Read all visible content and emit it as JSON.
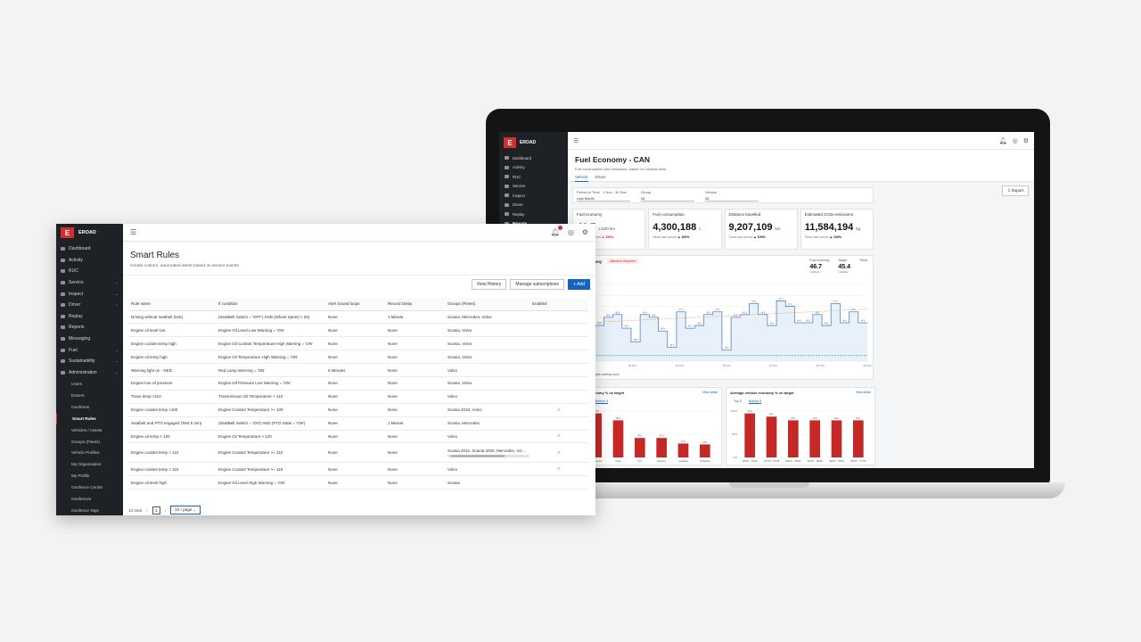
{
  "laptop": {
    "brand": "EROAD",
    "nav": [
      "Dashboard",
      "Activity",
      "RUC",
      "Service",
      "Inspect",
      "Driver",
      "Replay",
      "Reports"
    ],
    "page_title": "Fuel Economy - CAN",
    "page_subtitle": "Fuel consumption and emissions, based on CANbus data",
    "tabs": [
      "Vehicle",
      "Driver"
    ],
    "export_label": "Export",
    "filters": [
      {
        "label": "Period of Time",
        "value": "Last Month",
        "extra": "1 Nov - 30 Nov"
      },
      {
        "label": "Group",
        "value": "All"
      },
      {
        "label": "Vehicle",
        "value": "All"
      }
    ],
    "kpis": [
      {
        "label": "Fuel economy",
        "value": "46.7",
        "unit": "L/100 km",
        "delta_label": "Since last period",
        "delta": "▲ 100%",
        "delta_color": "red"
      },
      {
        "label": "Fuel consumption",
        "value": "4,300,188",
        "unit": "L",
        "delta_label": "Since last period",
        "delta": "▲ 100%",
        "delta_color": "black"
      },
      {
        "label": "Distance travelled",
        "value": "9,207,109",
        "unit": "km",
        "delta_label": "Since last period",
        "delta": "▲ 100%",
        "delta_color": "black"
      },
      {
        "label": "Estimated CO2e emissions",
        "value": "11,584,194",
        "unit": "kg",
        "delta_label": "Since last period",
        "delta": "▲ 100%",
        "delta_color": "black"
      }
    ],
    "fuel_chart": {
      "title": "Fuel economy",
      "badge": "Attention Required",
      "legend": [
        {
          "label": "Fuel economy",
          "value": "46.7",
          "unit": "L/100 km"
        },
        {
          "label": "Target",
          "value": "45.4",
          "unit": "L/100km"
        },
        {
          "label": "Trend",
          "value": "",
          "unit": ""
        }
      ],
      "footer": "More insights coming soon"
    },
    "bar_left": {
      "title": "Group economy % vs target",
      "link": "View detail",
      "tabs": [
        "Top 5",
        "Bottom 5"
      ],
      "active_tab": 1
    },
    "bar_right": {
      "title": "Average vehicle economy % vs target",
      "link": "View detail",
      "tabs": [
        "Top 5",
        "Bottom 5"
      ],
      "active_tab": 1
    }
  },
  "front": {
    "brand": "EROAD",
    "nav": [
      {
        "label": "Dashboard",
        "chevron": false
      },
      {
        "label": "Activity",
        "chevron": false
      },
      {
        "label": "RUC",
        "chevron": false
      },
      {
        "label": "Service",
        "chevron": true
      },
      {
        "label": "Inspect",
        "chevron": true
      },
      {
        "label": "Driver",
        "chevron": true
      },
      {
        "label": "Replay",
        "chevron": false
      },
      {
        "label": "Reports",
        "chevron": false
      },
      {
        "label": "Messaging",
        "chevron": false
      },
      {
        "label": "Fuel",
        "chevron": true
      },
      {
        "label": "Sustainability",
        "chevron": true
      },
      {
        "label": "Administration",
        "chevron": true
      }
    ],
    "sub_nav": [
      "Users",
      "Drivers",
      "Geofrmes",
      "Smart Rules",
      "Vehicles / Assets",
      "Groups (Fleets)",
      "Vehicle Profiles",
      "My Organisation",
      "My Profile",
      "Geofence Centre",
      "Geofences",
      "Geofence Tags"
    ],
    "active_sub": 3,
    "page_title": "Smart Rules",
    "page_subtitle": "Create custom, automated alerts based on sensor events",
    "buttons": {
      "history": "View History",
      "subscriptions": "Manage subscriptions",
      "add": "+ Add"
    },
    "columns": [
      "Rule name",
      "If condition",
      "Alert Sound loops",
      "Record Delay",
      "Groups (Fleets)",
      "Enabled"
    ],
    "rows": [
      [
        "Driving without seatbelt (test)",
        "(SeatBelt Switch = 'OFF') AND (Wheel Speed > 20)",
        "None",
        "1 Minute",
        "Scania, Mercedes, Volvo",
        ""
      ],
      [
        "Engine oil level low",
        "Engine Oil Level Low Warning = 'ON'",
        "None",
        "None",
        "Scania, Volvo",
        ""
      ],
      [
        "Engine coolant temp high",
        "Engine Oil Coolant Temperature High Warning = 'ON'",
        "None",
        "None",
        "Scania, Volvo",
        ""
      ],
      [
        "Engine oil temp high",
        "Engine Oil Temperature High Warning = 'ON'",
        "None",
        "None",
        "Scania, Volvo",
        ""
      ],
      [
        "Warning light on - RED",
        "Red Lamp Warning = 'ON'",
        "5 Minutes",
        "None",
        "Volvo",
        ""
      ],
      [
        "Engine low oil pressure",
        "Engine Oil Pressure Low Warning = 'ON'",
        "None",
        "None",
        "Scania, Volvo",
        ""
      ],
      [
        "Trans temp >110",
        "Transmission Oil Temperature > 110",
        "None",
        "None",
        "Volvo",
        ""
      ],
      [
        "Engine coolant temp >100",
        "Engine Coolant Temperature >= 100",
        "None",
        "None",
        "Scania 2018, Volvo",
        "✓"
      ],
      [
        "Seatbelt and PTO engaged (Test 5 min)",
        "(SeatBelt Switch = 'ON') AND (PTO State = 'ON')",
        "None",
        "1 Minute",
        "Scania, Mercedes",
        ""
      ],
      [
        "Engine oil temp > 120",
        "Engine Oil Temperature > 120",
        "None",
        "None",
        "Volvo",
        "✓"
      ],
      [
        "Engine coolant temp > 110",
        "Engine Coolant Temperature >= 110",
        "None",
        "None",
        "Scania 2012, Scania 2020, Mercedes, Volvo, 5d",
        "✓"
      ],
      [
        "Engine coolant temp > 115",
        "Engine Coolant Temperature >= 115",
        "None",
        "None",
        "Volvo",
        "✓"
      ],
      [
        "Engine oil level high",
        "Engine Oil Level High Warning = 'ON'",
        "None",
        "None",
        "Scania",
        ""
      ]
    ],
    "pager": {
      "total": "13 total",
      "page": "1",
      "per_page": "10 / page"
    }
  },
  "chart_data": [
    {
      "type": "line",
      "title": "Fuel economy",
      "y_ticks": [
        "48.0",
        "47.6",
        "47.2",
        "46.8",
        "46.4",
        "46.0",
        "45.6",
        "45.2"
      ],
      "ylim": [
        45.2,
        48.0
      ],
      "x_ticks": [
        "01 Nov",
        "05 Nov",
        "10 Nov",
        "15 Nov",
        "20 Nov",
        "25 Nov",
        "30 Nov"
      ],
      "series": [
        {
          "name": "Fuel economy",
          "values": [
            46.6,
            46.5,
            46.8,
            46.9,
            46.4,
            45.9,
            46.9,
            46.8,
            46.3,
            45.7,
            47.0,
            46.4,
            46.5,
            46.9,
            47.0,
            45.6,
            46.8,
            46.9,
            47.3,
            46.9,
            46.5,
            47.4,
            47.2,
            46.6,
            46.6,
            46.9,
            46.5,
            47.3,
            46.6,
            47.0,
            46.6
          ]
        },
        {
          "name": "Target",
          "values": [
            45.4
          ]
        },
        {
          "name": "Trend",
          "values": [
            46.6,
            47.1
          ]
        }
      ],
      "color": "#4a86c8"
    },
    {
      "type": "bar",
      "title": "Group economy % vs target",
      "categories": [
        "Bigbounce",
        "Canty",
        "Ianr",
        "Kingston",
        "Adelaide",
        "Whitebait"
      ],
      "values": [
        95,
        80,
        42,
        42,
        30,
        28
      ],
      "ylim": [
        0,
        100
      ],
      "color": "#c62828"
    },
    {
      "type": "bar",
      "title": "Average vehicle economy % vs target",
      "categories": [
        "NMXX - 20732",
        "NT770 - 12738",
        "NMXX - 78069",
        "NMXX - 78048",
        "NMXX - 78091",
        "NMXX - 77070"
      ],
      "values": [
        95,
        88,
        80,
        80,
        80,
        80
      ],
      "ylim": [
        0,
        100
      ],
      "color": "#c62828"
    }
  ]
}
